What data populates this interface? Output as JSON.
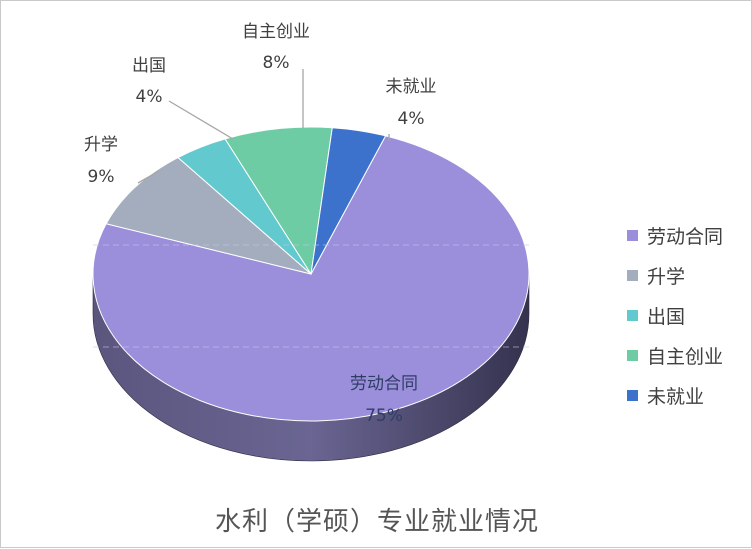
{
  "chart_data": {
    "type": "pie",
    "title": "水利（学硕）专业就业情况",
    "slices": [
      {
        "label": "劳动合同",
        "value": 75,
        "display": "75%",
        "color": "#9b8fdb"
      },
      {
        "label": "升学",
        "value": 9,
        "display": "9%",
        "color": "#a3adbd"
      },
      {
        "label": "出国",
        "value": 4,
        "display": "4%",
        "color": "#62c9cf"
      },
      {
        "label": "自主创业",
        "value": 8,
        "display": "8%",
        "color": "#6dcca4"
      },
      {
        "label": "未就业",
        "value": 4,
        "display": "4%",
        "color": "#3d72cc"
      }
    ],
    "legend_position": "right",
    "three_d": true
  }
}
